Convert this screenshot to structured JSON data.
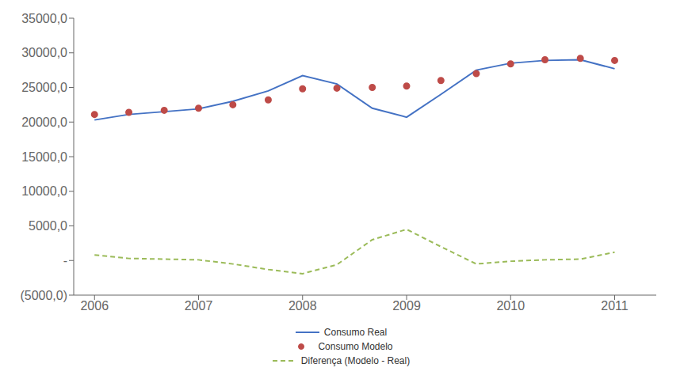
{
  "chart_data": {
    "type": "line",
    "x": [
      2006.0,
      2006.33,
      2006.67,
      2007.0,
      2007.33,
      2007.67,
      2008.0,
      2008.33,
      2008.67,
      2009.0,
      2009.33,
      2009.67,
      2010.0,
      2010.33,
      2010.67,
      2011.0
    ],
    "series": [
      {
        "name": "Consumo Real",
        "color": "#4472C4",
        "line_style": "solid",
        "values": [
          20300,
          21100,
          21500,
          21900,
          23000,
          24500,
          26700,
          25500,
          22000,
          20700,
          24000,
          27500,
          28500,
          28900,
          29000,
          27700
        ]
      },
      {
        "name": "Consumo Modelo",
        "color": "#BE4B48",
        "marker": "circle",
        "line_style": "none",
        "values": [
          21100,
          21400,
          21700,
          22000,
          22500,
          23200,
          24800,
          24900,
          25000,
          25200,
          26000,
          27000,
          28400,
          29000,
          29200,
          28900
        ]
      },
      {
        "name": "Diferença (Modelo - Real)",
        "color": "#9BBB59",
        "line_style": "dashed",
        "values": [
          800,
          300,
          200,
          100,
          -500,
          -1300,
          -1900,
          -600,
          3000,
          4500,
          2000,
          -500,
          -100,
          100,
          200,
          1200
        ]
      }
    ],
    "xlim": [
      2005.8,
      2011.4
    ],
    "xticks": [
      2006,
      2007,
      2008,
      2009,
      2010,
      2011
    ],
    "ylim": [
      -5000,
      35000
    ],
    "yticks": [
      {
        "value": -5000,
        "label": "(5000,0)"
      },
      {
        "value": 0,
        "label": "-"
      },
      {
        "value": 5000,
        "label": "5000,0"
      },
      {
        "value": 10000,
        "label": "10000,0"
      },
      {
        "value": 15000,
        "label": "15000,0"
      },
      {
        "value": 20000,
        "label": "20000,0"
      },
      {
        "value": 25000,
        "label": "25000,0"
      },
      {
        "value": 30000,
        "label": "30000,0"
      },
      {
        "value": 35000,
        "label": "35000,0"
      }
    ],
    "grid": false,
    "legend": "bottom"
  }
}
